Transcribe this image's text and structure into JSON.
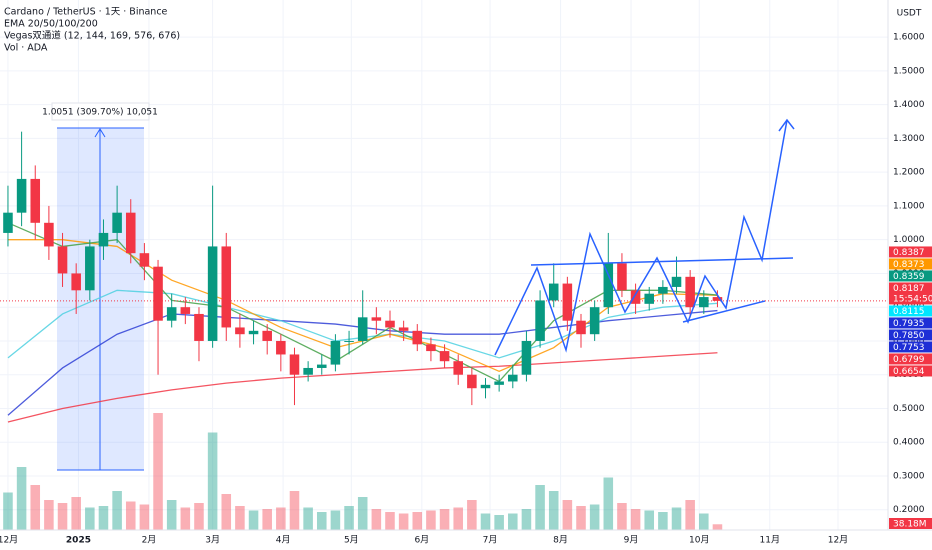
{
  "chart_data": {
    "type": "candlestick",
    "title": "Cardano / TetherUS · 1天 · Binance",
    "legend": [
      "EMA 20/50/100/200",
      "Vegas双通道 (12, 144, 169, 576, 676)",
      "Vol · ADA"
    ],
    "y_axis_label": "USDT",
    "x": [
      0,
      6,
      12,
      18,
      24,
      30,
      36,
      42,
      48,
      54,
      60,
      66,
      72,
      78,
      84,
      90,
      96,
      102,
      108,
      114,
      120,
      126,
      132,
      138,
      144,
      150,
      156,
      162,
      168,
      174,
      180,
      186,
      192,
      198,
      204,
      210,
      216,
      222,
      228,
      234,
      240,
      246,
      252,
      258,
      264,
      270,
      276,
      282,
      288,
      294,
      300,
      306,
      312
    ],
    "open": [
      1.02,
      1.08,
      1.18,
      1.05,
      0.98,
      0.9,
      0.85,
      0.98,
      1.02,
      1.08,
      0.96,
      0.92,
      0.76,
      0.8,
      0.78,
      0.7,
      0.98,
      0.74,
      0.72,
      0.73,
      0.7,
      0.66,
      0.6,
      0.62,
      0.63,
      0.7,
      0.7,
      0.77,
      0.76,
      0.74,
      0.73,
      0.69,
      0.67,
      0.64,
      0.6,
      0.56,
      0.57,
      0.58,
      0.6,
      0.7,
      0.82,
      0.87,
      0.76,
      0.72,
      0.8,
      0.93,
      0.85,
      0.81,
      0.84,
      0.86,
      0.89,
      0.8,
      0.83
    ],
    "high": [
      1.16,
      1.32,
      1.22,
      1.1,
      1.02,
      0.93,
      1.0,
      1.06,
      1.16,
      1.12,
      0.99,
      0.94,
      0.84,
      0.83,
      0.8,
      1.16,
      1.02,
      0.78,
      0.76,
      0.75,
      0.72,
      0.68,
      0.64,
      0.66,
      0.72,
      0.73,
      0.85,
      0.8,
      0.79,
      0.76,
      0.75,
      0.71,
      0.69,
      0.66,
      0.62,
      0.59,
      0.6,
      0.63,
      0.73,
      0.85,
      0.93,
      0.89,
      0.78,
      0.82,
      1.02,
      0.96,
      0.87,
      0.86,
      0.88,
      0.95,
      0.91,
      0.85,
      0.85
    ],
    "low": [
      0.98,
      1.04,
      1.0,
      0.94,
      0.86,
      0.78,
      0.82,
      0.94,
      0.99,
      0.93,
      0.88,
      0.6,
      0.74,
      0.75,
      0.64,
      0.68,
      0.7,
      0.68,
      0.69,
      0.66,
      0.61,
      0.51,
      0.58,
      0.6,
      0.61,
      0.66,
      0.69,
      0.72,
      0.71,
      0.7,
      0.67,
      0.64,
      0.62,
      0.57,
      0.51,
      0.53,
      0.55,
      0.56,
      0.58,
      0.68,
      0.8,
      0.73,
      0.68,
      0.7,
      0.78,
      0.83,
      0.78,
      0.79,
      0.81,
      0.84,
      0.77,
      0.78,
      0.8
    ],
    "close": [
      1.08,
      1.18,
      1.05,
      0.98,
      0.9,
      0.85,
      0.98,
      1.02,
      1.08,
      0.96,
      0.92,
      0.76,
      0.8,
      0.78,
      0.7,
      0.98,
      0.74,
      0.72,
      0.73,
      0.7,
      0.66,
      0.6,
      0.62,
      0.63,
      0.7,
      0.7,
      0.77,
      0.76,
      0.74,
      0.73,
      0.69,
      0.67,
      0.64,
      0.6,
      0.56,
      0.57,
      0.58,
      0.6,
      0.7,
      0.82,
      0.87,
      0.76,
      0.72,
      0.8,
      0.93,
      0.85,
      0.81,
      0.84,
      0.86,
      0.89,
      0.8,
      0.83,
      0.8187
    ],
    "volume": [
      250,
      420,
      300,
      200,
      180,
      220,
      150,
      160,
      260,
      190,
      170,
      780,
      200,
      150,
      180,
      650,
      240,
      160,
      130,
      140,
      150,
      260,
      150,
      120,
      130,
      160,
      220,
      140,
      120,
      110,
      120,
      130,
      140,
      150,
      200,
      110,
      100,
      110,
      140,
      300,
      260,
      200,
      160,
      170,
      350,
      180,
      140,
      130,
      120,
      150,
      200,
      110,
      38.18
    ],
    "volume_label": "38.18M",
    "up_color": "#089981",
    "down_color": "#f23645",
    "line_x": [
      0,
      24,
      48,
      72,
      96,
      120,
      144,
      168,
      192,
      216,
      240,
      264,
      288,
      312
    ],
    "lines": [
      {
        "color": "#f23645",
        "values": [
          0.46,
          0.5,
          0.53,
          0.555,
          0.575,
          0.59,
          0.6,
          0.61,
          0.62,
          0.625,
          0.635,
          0.645,
          0.655,
          0.665
        ]
      },
      {
        "color": "#2f3fd6",
        "values": [
          0.48,
          0.62,
          0.72,
          0.78,
          0.77,
          0.76,
          0.75,
          0.73,
          0.72,
          0.72,
          0.74,
          0.76,
          0.775,
          0.79
        ]
      },
      {
        "color": "#4dd0e1",
        "values": [
          0.65,
          0.78,
          0.85,
          0.84,
          0.8,
          0.76,
          0.7,
          0.72,
          0.7,
          0.65,
          0.7,
          0.77,
          0.8,
          0.8115
        ]
      },
      {
        "color": "#ff9800",
        "values": [
          1.0,
          1.0,
          0.98,
          0.88,
          0.82,
          0.74,
          0.68,
          0.72,
          0.68,
          0.61,
          0.68,
          0.8,
          0.84,
          0.835
        ]
      },
      {
        "color": "#43a047",
        "values": [
          1.05,
          0.98,
          1.0,
          0.82,
          0.8,
          0.72,
          0.64,
          0.74,
          0.66,
          0.58,
          0.76,
          0.85,
          0.85,
          0.836
        ]
      }
    ],
    "price_labels": {
      "values": [
        0.8387,
        0.8373,
        0.8359,
        0.8187,
        0.8115,
        0.7935,
        0.785,
        0.7753,
        0.6799,
        0.6654
      ],
      "value_labels": [
        "0.8387",
        "0.8373",
        "0.8359",
        "0.8187",
        "0.8115",
        "0.7935",
        "0.7850",
        "0.7753",
        "0.6799",
        "0.6654"
      ],
      "colors": [
        "#f23645",
        "#ff9800",
        "#089981",
        "#f23645",
        "#00e5ff",
        "#1e2fd6",
        "#1e2fd6",
        "#1e2fd6",
        "#f23645",
        "#f23645"
      ]
    },
    "countdown": "15:54:50",
    "measure_label": "1.0051 (309.70%) 10,051",
    "xlim": [
      -3.5,
      387
    ],
    "ylim": [
      0.14,
      1.71
    ],
    "yticks": [
      {
        "value": 1.6,
        "label": "1.6000"
      },
      {
        "value": 1.5,
        "label": "1.5000"
      },
      {
        "value": 1.4,
        "label": "1.4000"
      },
      {
        "value": 1.3,
        "label": "1.3000"
      },
      {
        "value": 1.2,
        "label": "1.2000"
      },
      {
        "value": 1.1,
        "label": "1.1000"
      },
      {
        "value": 1.0,
        "label": "1.0000"
      },
      {
        "value": 0.9,
        "label": "0.9000"
      },
      {
        "value": 0.8,
        "label": "0.8000"
      },
      {
        "value": 0.7,
        "label": "0.7000"
      },
      {
        "value": 0.6,
        "label": "0.6000"
      },
      {
        "value": 0.5,
        "label": "0.5000"
      },
      {
        "value": 0.4,
        "label": "0.4000"
      },
      {
        "value": 0.3,
        "label": "0.3000"
      },
      {
        "value": 0.2,
        "label": "0.2000"
      }
    ],
    "xticks": [
      {
        "value": 0,
        "label": "12月"
      },
      {
        "value": 31,
        "label": "2025"
      },
      {
        "value": 62,
        "label": "2月"
      },
      {
        "value": 90,
        "label": "3月"
      },
      {
        "value": 121,
        "label": "4月"
      },
      {
        "value": 151,
        "label": "5月"
      },
      {
        "value": 182,
        "label": "6月"
      },
      {
        "value": 212,
        "label": "7月"
      },
      {
        "value": 243,
        "label": "8月"
      },
      {
        "value": 274,
        "label": "9月"
      },
      {
        "value": 304,
        "label": "10月"
      },
      {
        "value": 335,
        "label": "11月"
      },
      {
        "value": 365,
        "label": "12月"
      }
    ],
    "grid": true
  }
}
